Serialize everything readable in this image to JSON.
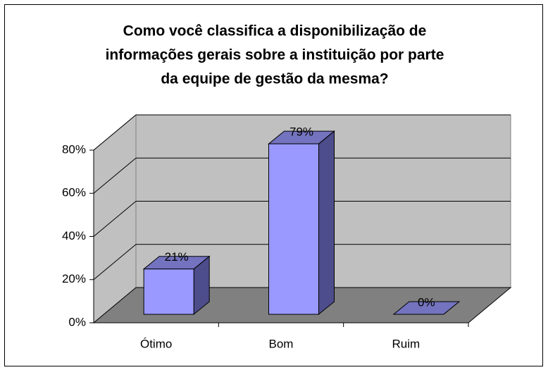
{
  "chart_data": {
    "type": "bar3d",
    "title": [
      "Como você classifica a disponibilização de",
      "informações gerais sobre a instituição por parte",
      "da equipe de gestão da mesma?"
    ],
    "categories": [
      "Ótimo",
      "Bom",
      "Ruim"
    ],
    "values": [
      21,
      79,
      0
    ],
    "value_labels": [
      "21%",
      "79%",
      "0%"
    ],
    "color": "#9999ff",
    "ylim": [
      0,
      80
    ],
    "yticks": [
      {
        "value": 0,
        "label": "0%"
      },
      {
        "value": 20,
        "label": "20%"
      },
      {
        "value": 40,
        "label": "40%"
      },
      {
        "value": 60,
        "label": "60%"
      },
      {
        "value": 80,
        "label": "80%"
      }
    ],
    "grid": true
  }
}
